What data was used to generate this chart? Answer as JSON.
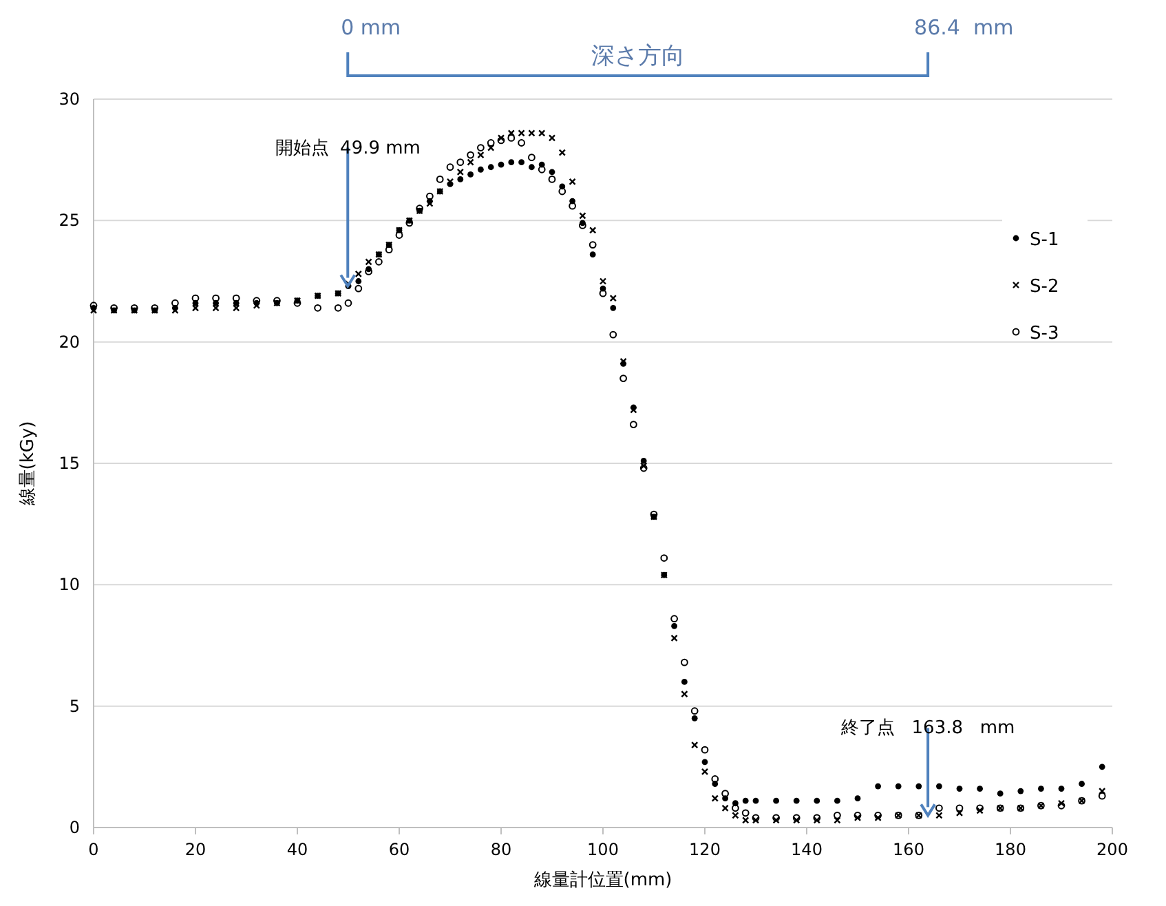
{
  "chart_data": {
    "type": "scatter",
    "xlabel": "線量計位置(mm)",
    "ylabel": "線量(kGy)",
    "x": [
      0,
      4,
      8,
      12,
      16,
      20,
      24,
      28,
      32,
      36,
      40,
      44,
      48,
      50,
      52,
      54,
      56,
      58,
      60,
      62,
      64,
      66,
      68,
      70,
      72,
      74,
      76,
      78,
      80,
      82,
      84,
      86,
      88,
      90,
      92,
      94,
      96,
      98,
      100,
      102,
      104,
      106,
      108,
      110,
      112,
      114,
      116,
      118,
      120,
      122,
      124,
      126,
      128,
      130,
      134,
      138,
      142,
      146,
      150,
      154,
      158,
      162,
      166,
      170,
      174,
      178,
      182,
      186,
      190,
      194,
      198
    ],
    "series": [
      {
        "name": "S-1",
        "color": "#000000",
        "marker": "circle",
        "values": [
          21.4,
          21.3,
          21.3,
          21.3,
          21.4,
          21.6,
          21.6,
          21.6,
          21.6,
          21.6,
          21.7,
          21.9,
          22.0,
          22.3,
          22.5,
          23.0,
          23.6,
          24.0,
          24.6,
          25.0,
          25.4,
          25.8,
          26.2,
          26.5,
          26.7,
          26.9,
          27.1,
          27.2,
          27.3,
          27.4,
          27.4,
          27.2,
          27.3,
          27.0,
          26.4,
          25.8,
          24.9,
          23.6,
          22.2,
          21.4,
          19.1,
          17.3,
          15.1,
          12.8,
          10.4,
          8.3,
          6.0,
          4.5,
          2.7,
          1.8,
          1.2,
          1.0,
          1.1,
          1.1,
          1.1,
          1.1,
          1.1,
          1.1,
          1.2,
          1.7,
          1.7,
          1.7,
          1.7,
          1.6,
          1.6,
          1.4,
          1.5,
          1.6,
          1.6,
          1.8,
          2.5
        ]
      },
      {
        "name": "S-2",
        "color": "#000000",
        "marker": "cross",
        "values": [
          21.3,
          21.3,
          21.3,
          21.3,
          21.3,
          21.4,
          21.4,
          21.4,
          21.5,
          21.6,
          21.7,
          21.9,
          22.0,
          22.4,
          22.8,
          23.3,
          23.6,
          24.0,
          24.6,
          25.0,
          25.4,
          25.7,
          26.2,
          26.6,
          27.0,
          27.4,
          27.7,
          28.0,
          28.4,
          28.6,
          28.6,
          28.6,
          28.6,
          28.4,
          27.8,
          26.6,
          25.2,
          24.6,
          22.5,
          21.8,
          19.2,
          17.2,
          14.9,
          12.8,
          10.4,
          7.8,
          5.5,
          3.4,
          2.3,
          1.2,
          0.8,
          0.5,
          0.3,
          0.3,
          0.3,
          0.3,
          0.3,
          0.3,
          0.4,
          0.4,
          0.5,
          0.5,
          0.5,
          0.6,
          0.7,
          0.8,
          0.8,
          0.9,
          1.0,
          1.1,
          1.5
        ]
      },
      {
        "name": "S-3",
        "color": "#000000",
        "marker": "circle",
        "values": [
          21.5,
          21.4,
          21.4,
          21.4,
          21.6,
          21.8,
          21.8,
          21.8,
          21.7,
          21.7,
          21.6,
          21.4,
          21.4,
          21.6,
          22.2,
          22.9,
          23.3,
          23.8,
          24.4,
          24.9,
          25.5,
          26.0,
          26.7,
          27.2,
          27.4,
          27.7,
          28.0,
          28.2,
          28.3,
          28.4,
          28.2,
          27.6,
          27.1,
          26.7,
          26.2,
          25.6,
          24.8,
          24.0,
          22.0,
          20.3,
          18.5,
          16.6,
          14.8,
          12.9,
          11.1,
          8.6,
          6.8,
          4.8,
          3.2,
          2.0,
          1.4,
          0.8,
          0.6,
          0.4,
          0.4,
          0.4,
          0.4,
          0.5,
          0.5,
          0.5,
          0.5,
          0.5,
          0.8,
          0.8,
          0.8,
          0.8,
          0.8,
          0.9,
          0.9,
          1.1,
          1.3
        ]
      }
    ],
    "xlim": [
      0,
      200
    ],
    "xticks": [
      0,
      20,
      40,
      60,
      80,
      100,
      120,
      140,
      160,
      180,
      200
    ],
    "ylim": [
      0,
      30
    ],
    "yticks": [
      0,
      5,
      10,
      15,
      20,
      25,
      30
    ],
    "grid": "y",
    "legend": "right",
    "annotations": [
      {
        "text": "開始点  49.9 mm",
        "x": 49.9,
        "y": 22.3
      },
      {
        "text": "終了点   163.8   mm",
        "x": 163.8,
        "y": 0.5
      },
      "0 mm",
      "86.4  mm",
      "深さ方向"
    ]
  }
}
